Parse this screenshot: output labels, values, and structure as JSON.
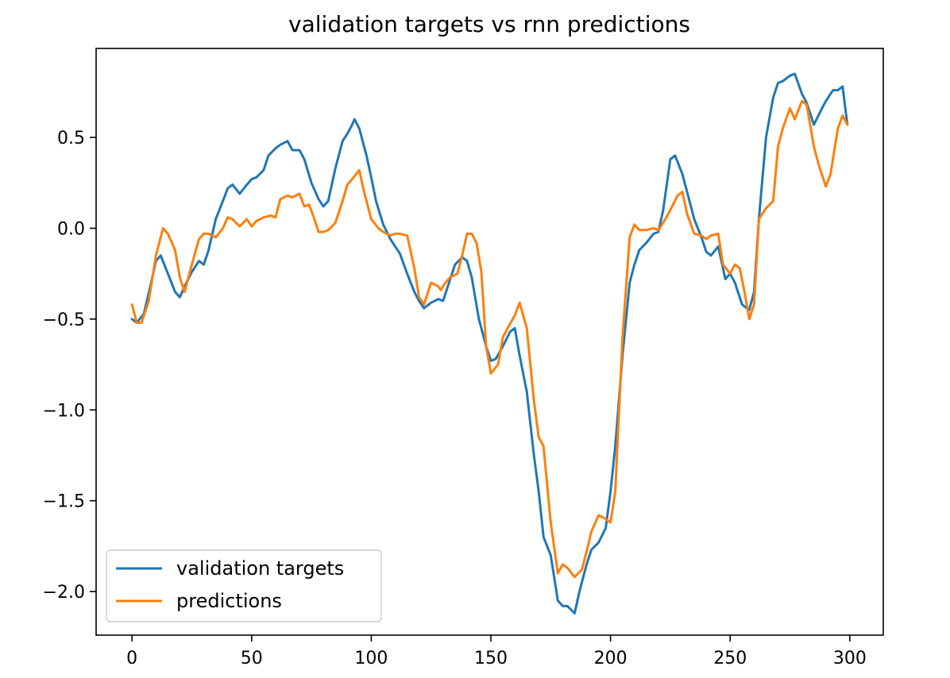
{
  "chart_data": {
    "type": "line",
    "title": "validation targets vs rnn predictions",
    "xlabel": "",
    "ylabel": "",
    "xlim": [
      -15,
      314
    ],
    "ylim": [
      -2.24,
      0.99
    ],
    "xticks": [
      0,
      50,
      100,
      150,
      200,
      250,
      300
    ],
    "yticks": [
      0.5,
      0.0,
      -0.5,
      -1.0,
      -1.5,
      -2.0
    ],
    "xtick_labels": [
      "0",
      "50",
      "100",
      "150",
      "200",
      "250",
      "300"
    ],
    "ytick_labels": [
      "0.5",
      "0.0",
      "−0.5",
      "−1.0",
      "−1.5",
      "−2.0"
    ],
    "grid": false,
    "legend_position": "lower-left",
    "series": [
      {
        "name": "validation targets",
        "color": "#1f77b4",
        "x": [
          0,
          2,
          5,
          8,
          10,
          12,
          15,
          18,
          20,
          22,
          25,
          28,
          30,
          32,
          35,
          38,
          40,
          42,
          45,
          48,
          50,
          52,
          55,
          57,
          60,
          62,
          65,
          67,
          70,
          72,
          75,
          78,
          80,
          82,
          85,
          88,
          90,
          92,
          93,
          95,
          98,
          100,
          102,
          105,
          108,
          110,
          112,
          115,
          118,
          120,
          122,
          125,
          128,
          130,
          132,
          135,
          138,
          140,
          142,
          145,
          148,
          150,
          152,
          155,
          158,
          160,
          162,
          165,
          168,
          170,
          172,
          175,
          178,
          180,
          182,
          185,
          187,
          190,
          192,
          195,
          198,
          200,
          202,
          205,
          208,
          210,
          212,
          215,
          218,
          220,
          222,
          225,
          227,
          230,
          232,
          235,
          238,
          240,
          242,
          245,
          248,
          250,
          252,
          255,
          258,
          260,
          262,
          265,
          268,
          270,
          272,
          275,
          277,
          280,
          282,
          285,
          288,
          290,
          293,
          295,
          297,
          299
        ],
        "y": [
          -0.5,
          -0.52,
          -0.47,
          -0.3,
          -0.18,
          -0.15,
          -0.25,
          -0.35,
          -0.38,
          -0.32,
          -0.24,
          -0.18,
          -0.2,
          -0.12,
          0.05,
          0.15,
          0.22,
          0.24,
          0.19,
          0.24,
          0.27,
          0.28,
          0.32,
          0.4,
          0.44,
          0.46,
          0.48,
          0.43,
          0.43,
          0.38,
          0.25,
          0.16,
          0.12,
          0.15,
          0.33,
          0.48,
          0.52,
          0.57,
          0.6,
          0.55,
          0.4,
          0.28,
          0.15,
          0.02,
          -0.06,
          -0.1,
          -0.14,
          -0.25,
          -0.35,
          -0.4,
          -0.44,
          -0.41,
          -0.39,
          -0.4,
          -0.32,
          -0.2,
          -0.16,
          -0.18,
          -0.27,
          -0.5,
          -0.65,
          -0.73,
          -0.72,
          -0.65,
          -0.57,
          -0.55,
          -0.7,
          -0.9,
          -1.25,
          -1.45,
          -1.7,
          -1.8,
          -2.05,
          -2.08,
          -2.08,
          -2.12,
          -2.0,
          -1.85,
          -1.77,
          -1.73,
          -1.65,
          -1.45,
          -1.2,
          -0.7,
          -0.3,
          -0.2,
          -0.12,
          -0.08,
          -0.03,
          -0.02,
          0.1,
          0.38,
          0.4,
          0.3,
          0.2,
          0.05,
          -0.05,
          -0.13,
          -0.15,
          -0.1,
          -0.28,
          -0.25,
          -0.3,
          -0.42,
          -0.45,
          -0.35,
          0.05,
          0.5,
          0.72,
          0.8,
          0.81,
          0.84,
          0.85,
          0.74,
          0.69,
          0.57,
          0.65,
          0.7,
          0.76,
          0.76,
          0.78,
          0.57
        ]
      },
      {
        "name": "predictions",
        "color": "#ff7f0e",
        "x": [
          0,
          2,
          4,
          7,
          10,
          13,
          15,
          18,
          20,
          22,
          25,
          28,
          30,
          32,
          35,
          38,
          40,
          42,
          45,
          48,
          50,
          52,
          55,
          58,
          60,
          62,
          65,
          67,
          70,
          72,
          74,
          76,
          78,
          80,
          82,
          85,
          88,
          90,
          92,
          95,
          97,
          100,
          103,
          105,
          108,
          110,
          112,
          115,
          118,
          120,
          122,
          125,
          128,
          129,
          131,
          133,
          136,
          138,
          140,
          142,
          144,
          146,
          148,
          150,
          153,
          155,
          157,
          160,
          162,
          165,
          168,
          170,
          172,
          175,
          178,
          180,
          182,
          185,
          188,
          190,
          192,
          195,
          198,
          200,
          202,
          205,
          208,
          210,
          212,
          215,
          218,
          220,
          222,
          225,
          228,
          230,
          232,
          235,
          238,
          240,
          242,
          245,
          247,
          250,
          252,
          254,
          256,
          258,
          260,
          262,
          265,
          268,
          270,
          272,
          275,
          277,
          280,
          282,
          285,
          287,
          290,
          292,
          295,
          297,
          299
        ],
        "y": [
          -0.42,
          -0.52,
          -0.52,
          -0.4,
          -0.15,
          0.0,
          -0.03,
          -0.12,
          -0.27,
          -0.35,
          -0.2,
          -0.06,
          -0.03,
          -0.03,
          -0.05,
          0.0,
          0.06,
          0.05,
          0.01,
          0.05,
          0.01,
          0.04,
          0.06,
          0.07,
          0.06,
          0.16,
          0.18,
          0.17,
          0.19,
          0.12,
          0.13,
          0.06,
          -0.02,
          -0.02,
          -0.01,
          0.03,
          0.15,
          0.24,
          0.27,
          0.32,
          0.2,
          0.05,
          0.0,
          -0.02,
          -0.04,
          -0.03,
          -0.03,
          -0.04,
          -0.22,
          -0.38,
          -0.42,
          -0.3,
          -0.32,
          -0.34,
          -0.3,
          -0.27,
          -0.25,
          -0.15,
          -0.03,
          -0.03,
          -0.08,
          -0.24,
          -0.65,
          -0.8,
          -0.75,
          -0.6,
          -0.55,
          -0.48,
          -0.41,
          -0.55,
          -0.95,
          -1.15,
          -1.2,
          -1.62,
          -1.9,
          -1.85,
          -1.87,
          -1.92,
          -1.88,
          -1.78,
          -1.67,
          -1.58,
          -1.6,
          -1.62,
          -1.45,
          -0.6,
          -0.05,
          0.02,
          -0.01,
          -0.01,
          0.0,
          -0.01,
          0.03,
          0.1,
          0.18,
          0.2,
          0.08,
          -0.03,
          -0.04,
          -0.06,
          -0.04,
          -0.03,
          -0.2,
          -0.25,
          -0.2,
          -0.22,
          -0.35,
          -0.5,
          -0.42,
          0.05,
          0.11,
          0.15,
          0.45,
          0.55,
          0.66,
          0.6,
          0.7,
          0.68,
          0.45,
          0.35,
          0.23,
          0.3,
          0.55,
          0.62,
          0.57
        ]
      }
    ]
  }
}
